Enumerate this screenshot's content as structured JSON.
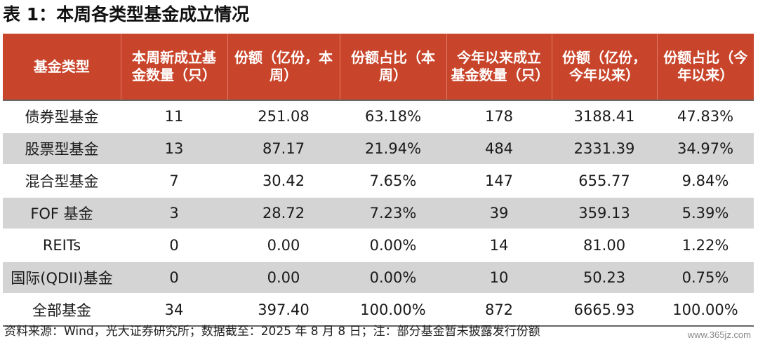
{
  "title": "表 1：本周各类型基金成立情况",
  "headers": [
    "基金类型",
    "本周新成立基金数量（只）",
    "份额（亿份，本周）",
    "份额占比（本周）",
    "今年以来成立基金数量（只）",
    "份额（亿份，今年以来）",
    "份额占比（今年以来）"
  ],
  "rows": [
    [
      "债券型基金",
      "11",
      "251.08",
      "63.18%",
      "178",
      "3188.41",
      "47.83%"
    ],
    [
      "股票型基金",
      "13",
      "87.17",
      "21.94%",
      "484",
      "2331.39",
      "34.97%"
    ],
    [
      "混合型基金",
      "7",
      "30.42",
      "7.65%",
      "147",
      "655.77",
      "9.84%"
    ],
    [
      "FOF 基金",
      "3",
      "28.72",
      "7.23%",
      "39",
      "359.13",
      "5.39%"
    ],
    [
      "REITs",
      "0",
      "0.00",
      "0.00%",
      "14",
      "81.00",
      "1.22%"
    ],
    [
      "国际(QDII)基金",
      "0",
      "0.00",
      "0.00%",
      "10",
      "50.23",
      "0.75%"
    ],
    [
      "全部基金",
      "34",
      "397.40",
      "100.00%",
      "872",
      "6665.93",
      "100.00%"
    ]
  ],
  "source": "资料来源：Wind，光大证券研究所；数据截至：2025 年 8 月 8 日；注：部分基金暂未披露发行份额",
  "watermark": "www.365jz.com",
  "colors": {
    "header_bg": "#c8442a",
    "shade_bg": "#d4d4d4"
  }
}
